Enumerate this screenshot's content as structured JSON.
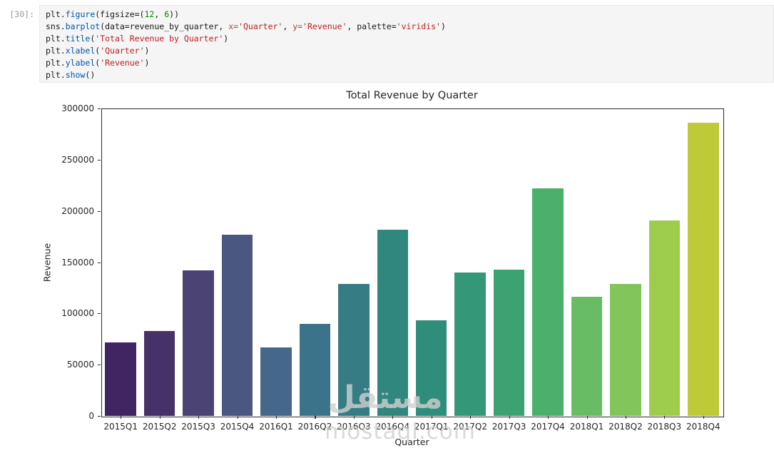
{
  "cell": {
    "prompt": "[30]:",
    "language": "python",
    "code_lines": [
      [
        {
          "t": "plt.",
          "c": "d"
        },
        {
          "t": "figure",
          "c": "m"
        },
        {
          "t": "(figsize=(",
          "c": "d"
        },
        {
          "t": "12",
          "c": "n"
        },
        {
          "t": ", ",
          "c": "d"
        },
        {
          "t": "6",
          "c": "n"
        },
        {
          "t": "))",
          "c": "d"
        }
      ],
      [
        {
          "t": "sns.",
          "c": "d"
        },
        {
          "t": "barplot",
          "c": "m"
        },
        {
          "t": "(data=revenue_by_quarter, ",
          "c": "d"
        },
        {
          "t": "x=",
          "c": "k"
        },
        {
          "t": "'Quarter'",
          "c": "s"
        },
        {
          "t": ", ",
          "c": "d"
        },
        {
          "t": "y=",
          "c": "k"
        },
        {
          "t": "'Revenue'",
          "c": "s"
        },
        {
          "t": ", palette=",
          "c": "d"
        },
        {
          "t": "'viridis'",
          "c": "s"
        },
        {
          "t": ")",
          "c": "d"
        }
      ],
      [
        {
          "t": "plt.",
          "c": "d"
        },
        {
          "t": "title",
          "c": "m"
        },
        {
          "t": "(",
          "c": "d"
        },
        {
          "t": "'Total Revenue by Quarter'",
          "c": "s"
        },
        {
          "t": ")",
          "c": "d"
        }
      ],
      [
        {
          "t": "plt.",
          "c": "d"
        },
        {
          "t": "xlabel",
          "c": "m"
        },
        {
          "t": "(",
          "c": "d"
        },
        {
          "t": "'Quarter'",
          "c": "s"
        },
        {
          "t": ")",
          "c": "d"
        }
      ],
      [
        {
          "t": "plt.",
          "c": "d"
        },
        {
          "t": "ylabel",
          "c": "m"
        },
        {
          "t": "(",
          "c": "d"
        },
        {
          "t": "'Revenue'",
          "c": "s"
        },
        {
          "t": ")",
          "c": "d"
        }
      ],
      [
        {
          "t": "plt.",
          "c": "d"
        },
        {
          "t": "show",
          "c": "m"
        },
        {
          "t": "()",
          "c": "d"
        }
      ]
    ]
  },
  "chart_data": {
    "type": "bar",
    "title": "Total Revenue by Quarter",
    "xlabel": "Quarter",
    "ylabel": "Revenue",
    "categories": [
      "2015Q1",
      "2015Q2",
      "2015Q3",
      "2015Q4",
      "2016Q1",
      "2016Q2",
      "2016Q3",
      "2016Q4",
      "2017Q1",
      "2017Q2",
      "2017Q3",
      "2017Q4",
      "2018Q1",
      "2018Q2",
      "2018Q3",
      "2018Q4"
    ],
    "values": [
      72000,
      83000,
      142000,
      177000,
      67000,
      90000,
      129000,
      182000,
      93000,
      140000,
      143000,
      222000,
      116000,
      129000,
      191000,
      286000
    ],
    "bar_colors": [
      "#412563",
      "#473169",
      "#4b4374",
      "#4a5781",
      "#44678b",
      "#3b738a",
      "#357c84",
      "#2f877d",
      "#2e8e7b",
      "#349878",
      "#3ca272",
      "#4daf6c",
      "#68bc64",
      "#81c55b",
      "#9ecd4d",
      "#bfca39"
    ],
    "ylim": [
      0,
      300000
    ],
    "yticks": [
      0,
      50000,
      100000,
      150000,
      200000,
      250000,
      300000
    ],
    "grid": false,
    "legend": false
  },
  "watermark": {
    "arabic": "مستقل",
    "latin": "mostaql.com",
    "color": "#d0d0d0"
  }
}
